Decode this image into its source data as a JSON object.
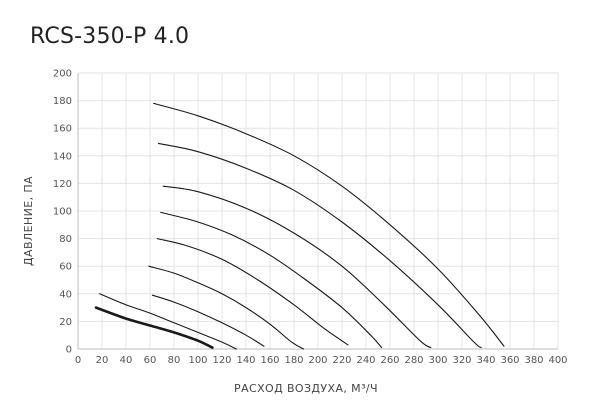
{
  "chart_data": {
    "type": "line",
    "title": "RCS-350-P 4.0",
    "xlabel": "РАСХОД ВОЗДУХА, М³/Ч",
    "ylabel": "ДАВЛЕНИЕ, ПА",
    "xlim": [
      0,
      400
    ],
    "ylim": [
      0,
      200
    ],
    "xticks": [
      "0",
      "20",
      "40",
      "60",
      "80",
      "100",
      "120",
      "140",
      "160",
      "180",
      "200",
      "220",
      "240",
      "260",
      "280",
      "300",
      "320",
      "340",
      "360",
      "380",
      "400"
    ],
    "yticks": [
      "0",
      "20",
      "40",
      "60",
      "80",
      "100",
      "120",
      "140",
      "160",
      "180",
      "200"
    ],
    "grid": true,
    "line_color": "#1a1a1a",
    "grid_color": "#e3e3e3",
    "series": [
      {
        "bold": true,
        "points": [
          [
            15,
            30
          ],
          [
            40,
            22
          ],
          [
            60,
            17
          ],
          [
            80,
            12
          ],
          [
            100,
            6
          ],
          [
            112,
            1
          ]
        ]
      },
      {
        "bold": false,
        "points": [
          [
            18,
            40
          ],
          [
            40,
            32
          ],
          [
            60,
            26
          ],
          [
            80,
            19
          ],
          [
            100,
            12
          ],
          [
            120,
            5
          ],
          [
            132,
            0
          ]
        ]
      },
      {
        "bold": false,
        "points": [
          [
            62,
            39
          ],
          [
            80,
            34
          ],
          [
            100,
            27
          ],
          [
            120,
            19
          ],
          [
            140,
            10
          ],
          [
            155,
            2
          ]
        ]
      },
      {
        "bold": false,
        "points": [
          [
            59,
            60
          ],
          [
            80,
            55
          ],
          [
            100,
            48
          ],
          [
            120,
            40
          ],
          [
            140,
            30
          ],
          [
            160,
            18
          ],
          [
            178,
            5
          ],
          [
            188,
            0
          ]
        ]
      },
      {
        "bold": false,
        "points": [
          [
            66,
            80
          ],
          [
            90,
            75
          ],
          [
            120,
            65
          ],
          [
            150,
            50
          ],
          [
            180,
            32
          ],
          [
            205,
            15
          ],
          [
            225,
            3
          ]
        ]
      },
      {
        "bold": false,
        "points": [
          [
            69,
            99
          ],
          [
            100,
            92
          ],
          [
            130,
            82
          ],
          [
            160,
            68
          ],
          [
            190,
            50
          ],
          [
            220,
            30
          ],
          [
            245,
            9
          ],
          [
            253,
            1
          ]
        ]
      },
      {
        "bold": false,
        "points": [
          [
            71,
            118
          ],
          [
            100,
            114
          ],
          [
            140,
            102
          ],
          [
            180,
            84
          ],
          [
            220,
            60
          ],
          [
            255,
            32
          ],
          [
            285,
            6
          ],
          [
            294,
            1
          ]
        ]
      },
      {
        "bold": false,
        "points": [
          [
            67,
            149
          ],
          [
            100,
            143
          ],
          [
            140,
            131
          ],
          [
            180,
            115
          ],
          [
            220,
            92
          ],
          [
            260,
            64
          ],
          [
            300,
            32
          ],
          [
            330,
            5
          ],
          [
            336,
            1
          ]
        ]
      },
      {
        "bold": false,
        "points": [
          [
            63,
            178
          ],
          [
            100,
            169
          ],
          [
            140,
            156
          ],
          [
            180,
            140
          ],
          [
            220,
            118
          ],
          [
            260,
            90
          ],
          [
            300,
            58
          ],
          [
            335,
            24
          ],
          [
            355,
            2
          ]
        ]
      }
    ]
  }
}
